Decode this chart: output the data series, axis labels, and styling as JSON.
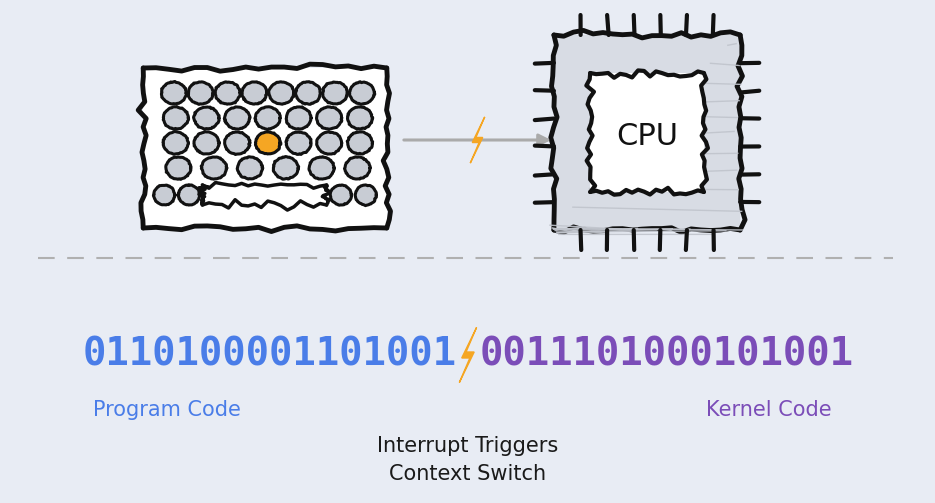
{
  "bg_color": "#e8ecf4",
  "binary_left": "0110100001101001",
  "binary_right": "0011101000101001",
  "label_left": "Program Code",
  "label_right": "Kernel Code",
  "label_interrupt": "Interrupt Triggers\nContext Switch",
  "color_left_binary": "#4a7de8",
  "color_right_binary": "#7b4db8",
  "color_label_left": "#4a7de8",
  "color_label_right": "#7b4db8",
  "color_interrupt_label": "#1a1a1a",
  "color_bolt": "#f5a623",
  "color_divider": "#b0b0b0",
  "color_keyboard_outline": "#111111",
  "color_cpu_outline": "#111111",
  "color_cpu_fill": "#d8dce4",
  "color_key_fill": "#c8ccd4",
  "color_key_highlight": "#f5a623",
  "color_arrow": "#aaaaaa",
  "color_hatch": "#c0c4cc"
}
